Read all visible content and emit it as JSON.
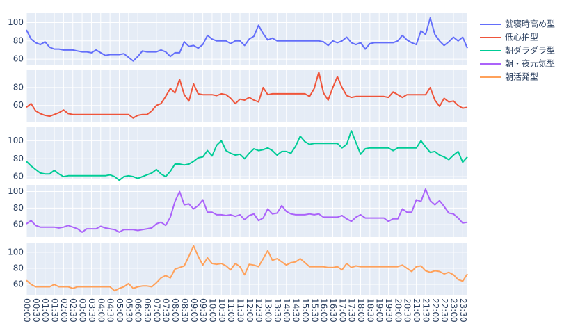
{
  "chart_data": {
    "type": "line",
    "categories": [
      "00:00",
      null,
      "00:30",
      null,
      "01:00",
      null,
      "01:30",
      null,
      "02:00",
      null,
      "02:30",
      null,
      "03:00",
      null,
      "03:30",
      null,
      "04:00",
      null,
      "04:30",
      null,
      "05:00",
      null,
      "05:30",
      null,
      "06:00",
      null,
      "06:30",
      null,
      "07:00",
      null,
      "07:30",
      null,
      "08:00",
      null,
      "08:30",
      null,
      "09:00",
      null,
      "09:30",
      null,
      "10:00",
      null,
      "10:30",
      null,
      "11:00",
      null,
      "11:30",
      null,
      "12:00",
      null,
      "12:30",
      null,
      "13:00",
      null,
      "13:30",
      null,
      "14:00",
      null,
      "14:30",
      null,
      "15:00",
      null,
      "15:30",
      null,
      "16:00",
      null,
      "16:30",
      null,
      "17:00",
      null,
      "17:30",
      null,
      "18:00",
      null,
      "18:30",
      null,
      "19:00",
      null,
      "19:30",
      null,
      "20:00",
      null,
      "20:30",
      null,
      "21:00",
      null,
      "21:30",
      null,
      "22:00",
      null,
      "22:30",
      null,
      "23:00",
      null,
      "23:30",
      null
    ],
    "legend": "right-top",
    "grid": true,
    "series": [
      {
        "name": "就寝時高め型",
        "color": "#636efa",
        "ylim": [
          54,
          111
        ],
        "yticks": [
          60,
          80,
          100
        ],
        "values": [
          92,
          82,
          78,
          76,
          79,
          73,
          71,
          71,
          70,
          70,
          70,
          69,
          68,
          68,
          67,
          70,
          67,
          64,
          65,
          65,
          65,
          66,
          62,
          58,
          63,
          69,
          68,
          68,
          68,
          70,
          68,
          63,
          67,
          67,
          79,
          74,
          75,
          72,
          76,
          86,
          82,
          80,
          80,
          80,
          77,
          80,
          80,
          75,
          82,
          85,
          97,
          88,
          81,
          83,
          80,
          80,
          80,
          80,
          80,
          80,
          80,
          80,
          80,
          80,
          79,
          75,
          80,
          78,
          80,
          84,
          78,
          76,
          78,
          71,
          77,
          78,
          78,
          78,
          78,
          78,
          80,
          86,
          81,
          78,
          76,
          91,
          87,
          105,
          87,
          80,
          75,
          79,
          84,
          80,
          84,
          72
        ]
      },
      {
        "name": "低心拍型",
        "color": "#EF553B",
        "ylim": [
          42,
          100
        ],
        "yticks": [
          60,
          80
        ],
        "values": [
          58,
          62,
          54,
          51,
          49,
          48,
          50,
          52,
          55,
          51,
          50,
          50,
          50,
          50,
          50,
          50,
          50,
          50,
          50,
          50,
          50,
          50,
          50,
          46,
          49,
          50,
          50,
          54,
          60,
          62,
          70,
          79,
          74,
          89,
          72,
          65,
          84,
          73,
          72,
          72,
          72,
          71,
          73,
          72,
          68,
          62,
          67,
          66,
          69,
          66,
          64,
          80,
          72,
          73,
          73,
          73,
          73,
          73,
          73,
          73,
          73,
          70,
          79,
          97,
          74,
          66,
          80,
          92,
          80,
          71,
          69,
          70,
          70,
          70,
          70,
          70,
          70,
          70,
          69,
          75,
          72,
          69,
          72,
          72,
          72,
          72,
          72,
          80,
          66,
          59,
          68,
          64,
          65,
          60,
          57,
          58
        ]
      },
      {
        "name": "朝ダラダラ型",
        "color": "#00cc96",
        "ylim": [
          57,
          115
        ],
        "yticks": [
          60,
          80,
          100
        ],
        "values": [
          77,
          72,
          68,
          64,
          63,
          63,
          67,
          63,
          60,
          61,
          61,
          61,
          61,
          61,
          61,
          61,
          61,
          61,
          62,
          60,
          56,
          60,
          61,
          60,
          58,
          60,
          62,
          64,
          68,
          63,
          60,
          66,
          74,
          74,
          73,
          74,
          77,
          81,
          82,
          89,
          83,
          95,
          100,
          89,
          86,
          84,
          85,
          80,
          86,
          91,
          89,
          90,
          92,
          89,
          84,
          88,
          88,
          86,
          94,
          105,
          99,
          96,
          97,
          97,
          97,
          97,
          97,
          97,
          92,
          96,
          111,
          98,
          85,
          91,
          92,
          92,
          92,
          92,
          92,
          89,
          92,
          92,
          92,
          92,
          92,
          100,
          93,
          87,
          88,
          84,
          82,
          79,
          84,
          88,
          76,
          82
        ]
      },
      {
        "name": "朝・夜元気型",
        "color": "#ab63fa",
        "ylim": [
          45,
          108
        ],
        "yticks": [
          60,
          80,
          100
        ],
        "values": [
          61,
          65,
          59,
          57,
          57,
          57,
          57,
          56,
          57,
          59,
          57,
          55,
          51,
          55,
          55,
          55,
          58,
          56,
          55,
          54,
          51,
          54,
          54,
          54,
          53,
          54,
          55,
          56,
          61,
          63,
          59,
          69,
          88,
          100,
          84,
          85,
          79,
          83,
          90,
          75,
          75,
          72,
          72,
          71,
          72,
          70,
          72,
          66,
          71,
          73,
          65,
          68,
          79,
          73,
          74,
          83,
          76,
          73,
          72,
          72,
          72,
          73,
          72,
          73,
          69,
          69,
          69,
          69,
          71,
          67,
          64,
          69,
          72,
          68,
          68,
          68,
          68,
          68,
          64,
          67,
          67,
          79,
          75,
          75,
          90,
          88,
          103,
          89,
          84,
          89,
          82,
          74,
          73,
          68,
          62,
          63
        ]
      },
      {
        "name": "朝活発型",
        "color": "#FFA15A",
        "ylim": [
          47,
          112
        ],
        "yticks": [
          60,
          80,
          100
        ],
        "values": [
          65,
          60,
          57,
          57,
          57,
          57,
          60,
          57,
          57,
          57,
          55,
          57,
          57,
          57,
          57,
          57,
          57,
          57,
          57,
          52,
          55,
          57,
          61,
          55,
          57,
          58,
          58,
          57,
          62,
          68,
          71,
          68,
          79,
          81,
          83,
          95,
          108,
          95,
          84,
          93,
          86,
          85,
          86,
          83,
          78,
          86,
          82,
          72,
          85,
          84,
          82,
          92,
          102,
          90,
          92,
          88,
          84,
          87,
          88,
          92,
          87,
          82,
          82,
          82,
          82,
          81,
          81,
          82,
          78,
          86,
          81,
          83,
          82,
          82,
          82,
          82,
          82,
          82,
          82,
          82,
          82,
          84,
          80,
          76,
          82,
          83,
          77,
          75,
          77,
          76,
          73,
          75,
          72,
          66,
          64,
          73
        ]
      }
    ]
  }
}
